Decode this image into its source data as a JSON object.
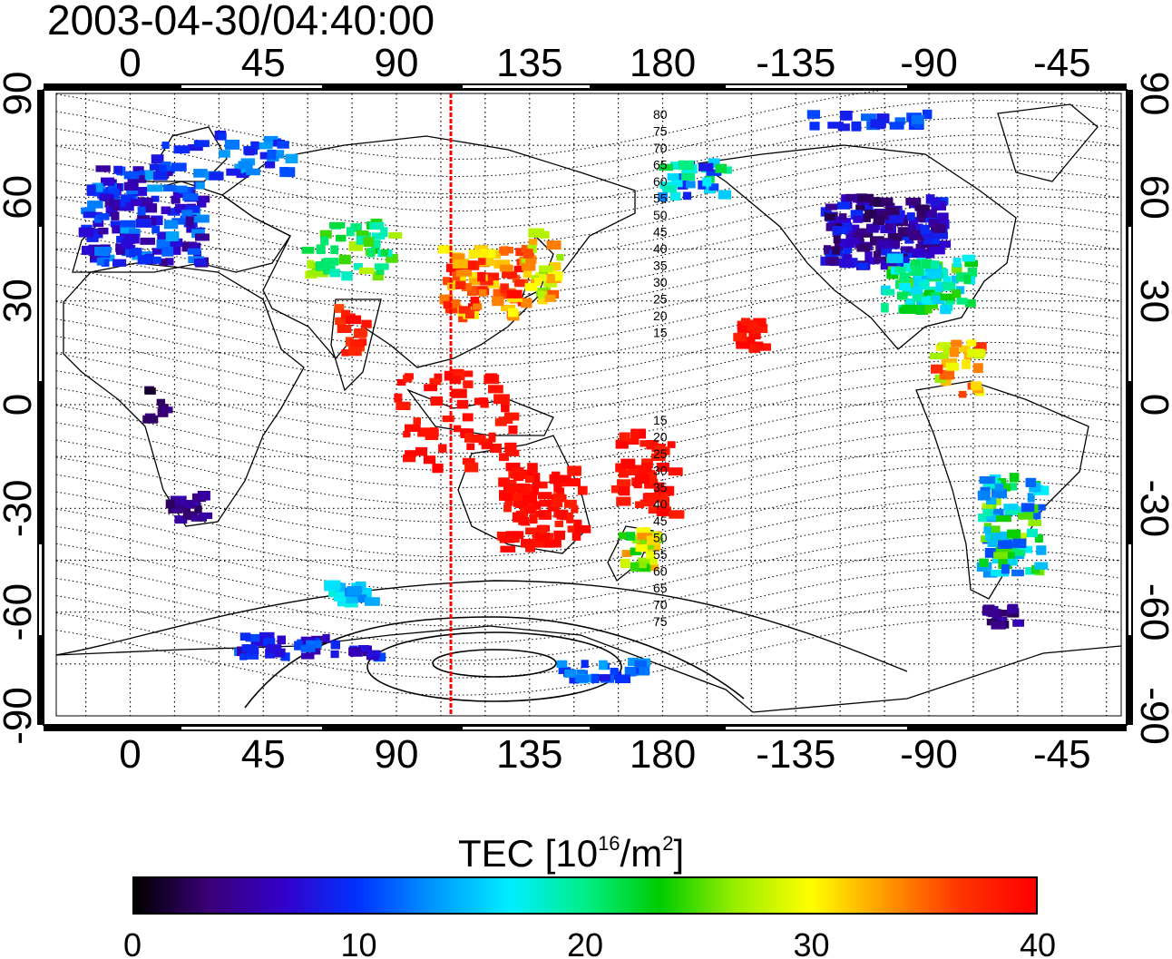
{
  "title": "2003-04-30/04:40:00",
  "map": {
    "lon_ticks_top": [
      "0",
      "45",
      "90",
      "135",
      "180",
      "-135",
      "-90",
      "-45"
    ],
    "lon_ticks_bottom": [
      "0",
      "45",
      "90",
      "135",
      "180",
      "-135",
      "-90",
      "-45"
    ],
    "lat_ticks": [
      "90",
      "60",
      "30",
      "0",
      "-30",
      "-60",
      "-90"
    ],
    "contour_labels_north": [
      "80",
      "75",
      "70",
      "65",
      "60",
      "55",
      "50",
      "45",
      "40",
      "35",
      "30",
      "25",
      "20",
      "15"
    ],
    "contour_labels_south": [
      "15",
      "20",
      "25",
      "30",
      "35",
      "40",
      "45",
      "50",
      "55",
      "60",
      "65",
      "70",
      "75"
    ],
    "meridian_marker_color": "#ff0000"
  },
  "colorbar": {
    "title_prefix": "TEC  [10",
    "title_sup1": "16",
    "title_mid": "/m",
    "title_sup2": "2",
    "title_suffix": "]",
    "ticks": [
      "0",
      "10",
      "20",
      "30",
      "40"
    ],
    "range": [
      0,
      40
    ],
    "colors": [
      "#000000",
      "#3a0077",
      "#3300cc",
      "#0033ff",
      "#0099ff",
      "#00eeff",
      "#00ee88",
      "#00cc00",
      "#99ee00",
      "#ffff00",
      "#ff9900",
      "#ff3300",
      "#ff0000"
    ]
  }
}
